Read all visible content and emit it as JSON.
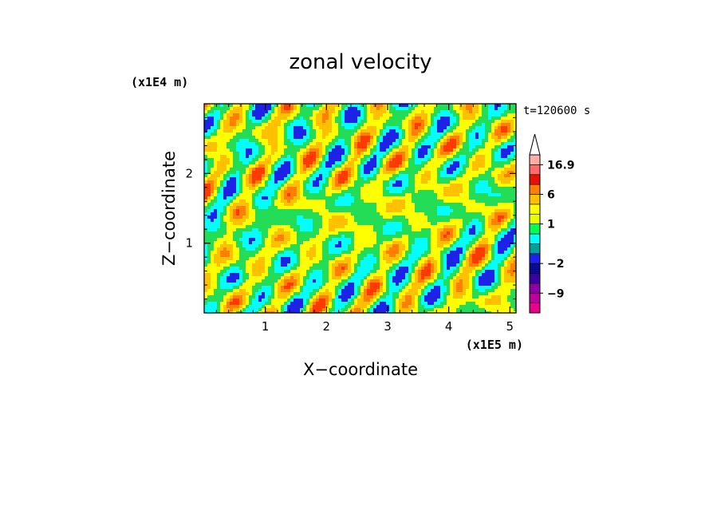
{
  "chart_data": {
    "type": "heatmap",
    "title": "zonal velocity",
    "xlabel": "X−coordinate",
    "ylabel": "Z−coordinate",
    "x_scale_label": "(x1E5 m)",
    "y_scale_label": "(x1E4 m)",
    "time_label": "t=120600 s",
    "xlim": [
      0,
      5.1
    ],
    "ylim": [
      0,
      3.0
    ],
    "x_ticks": [
      "1",
      "2",
      "3",
      "4",
      "5"
    ],
    "y_ticks": [
      "1",
      "2"
    ],
    "colorbar": {
      "labels": [
        "16.9",
        "6",
        "1",
        "−2",
        "−9"
      ],
      "levels": [
        -15,
        -12,
        -9,
        -6,
        -4,
        -2,
        -1,
        -0.5,
        0.5,
        1,
        2,
        4,
        6,
        9,
        12,
        16.9
      ],
      "colors": [
        "#e8008c",
        "#bb009c",
        "#8c00a8",
        "#3a00a4",
        "#0a0a96",
        "#1e22e6",
        "#00a0a0",
        "#00ffff",
        "#00ff52",
        "#e8ff00",
        "#ffff00",
        "#ffc000",
        "#ff8000",
        "#e81000",
        "#ff6a6a",
        "#ffb0a8"
      ]
    },
    "field_palette": {
      "strong_negative": "#1e22e6",
      "negative": "#00ffff",
      "near_zero": "#22dd55",
      "weak_positive": "#ffff00",
      "positive": "#ffc000",
      "strong_positive": "#ff8000",
      "peak": "#ff3a00"
    }
  }
}
